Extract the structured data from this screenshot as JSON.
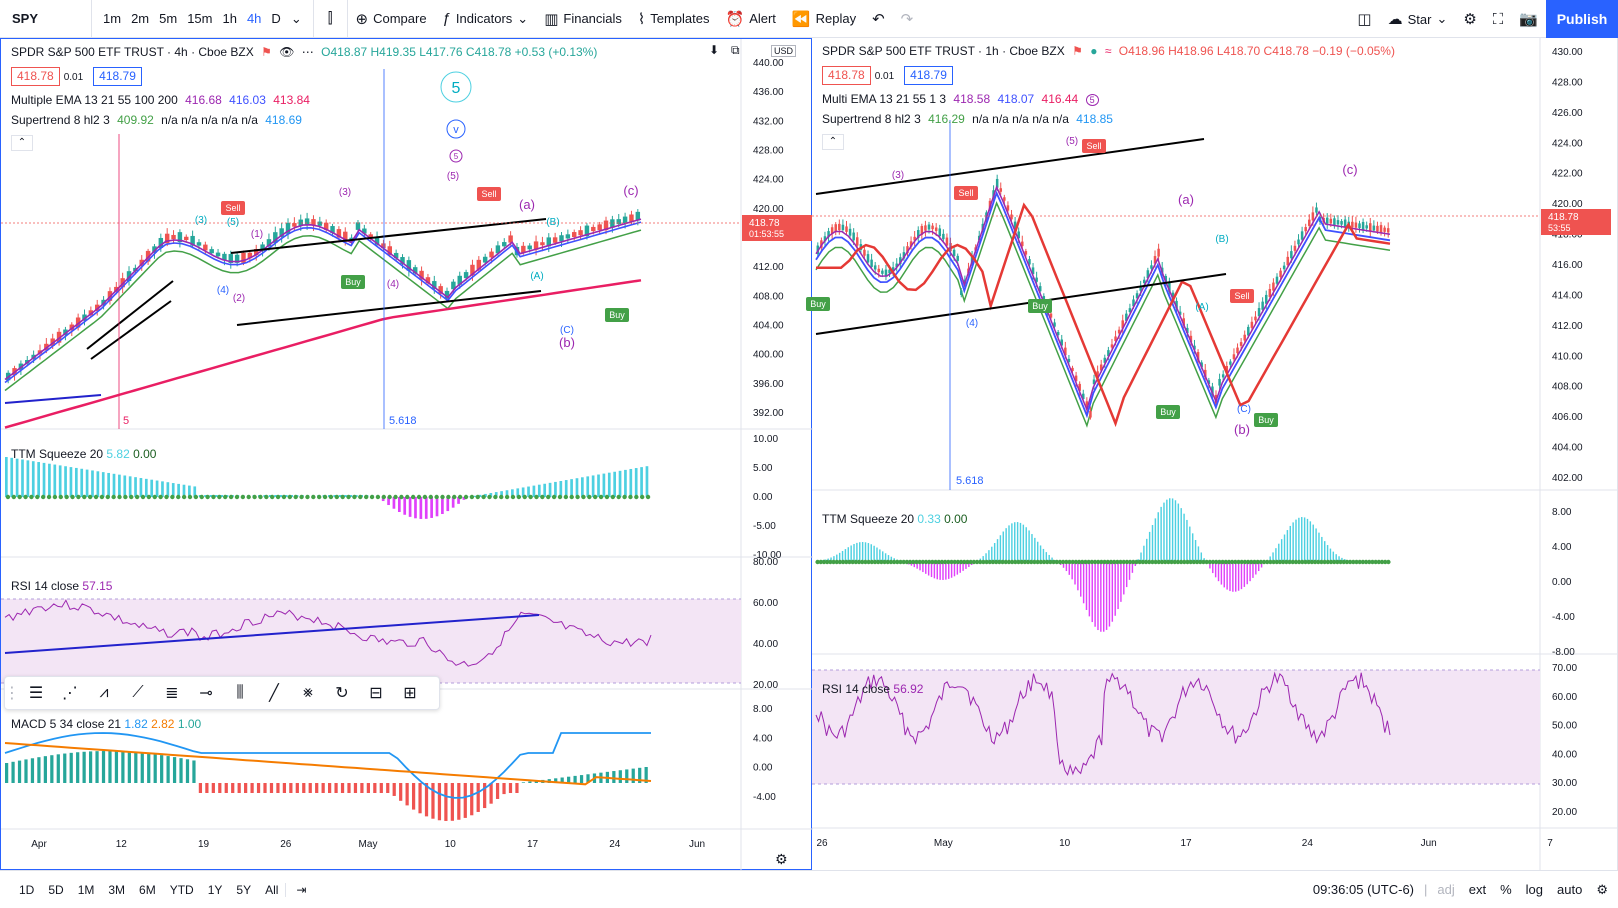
{
  "toolbar": {
    "symbol": "SPY",
    "intervals": [
      "1m",
      "2m",
      "5m",
      "15m",
      "1h",
      "4h",
      "D"
    ],
    "active_interval": "4h",
    "compare": "Compare",
    "indicators": "Indicators",
    "financials": "Financials",
    "templates": "Templates",
    "alert": "Alert",
    "replay": "Replay",
    "star": "Star",
    "publish": "Publish"
  },
  "left_chart": {
    "title": "SPDR S&P 500 ETF TRUST · 4h · Cboe BZX",
    "ohlc": "O418.87 H419.35 L417.76 C418.78 +0.53 (+0.13%)",
    "sell_price": "418.78",
    "spread": "0.01",
    "buy_price": "418.79",
    "ema_legend": "Multiple EMA 13 21 55 100 200",
    "ema_values": [
      "416.68",
      "416.03",
      "413.84"
    ],
    "supertrend_legend": "Supertrend 8 hl2 3",
    "supertrend_value": "409.92",
    "supertrend_na": "n/a n/a n/a n/a n/a",
    "supertrend_last": "418.69",
    "currency": "USD",
    "price_axis": [
      "440.00",
      "436.00",
      "432.00",
      "428.00",
      "424.00",
      "420.00",
      "416.00",
      "412.00",
      "408.00",
      "404.00",
      "400.00",
      "396.00",
      "392.00"
    ],
    "last_price": "418.78",
    "countdown": "01:53:55",
    "fib_label": "5.618",
    "vline_label": "5",
    "squeeze_title": "TTM Squeeze 20",
    "squeeze_values": [
      "5.82",
      "0.00"
    ],
    "squeeze_axis": [
      "10.00",
      "5.00",
      "0.00",
      "-5.00",
      "-10.00"
    ],
    "rsi_title": "RSI 14 close",
    "rsi_value": "57.15",
    "rsi_axis": [
      "80.00",
      "60.00",
      "40.00",
      "20.00"
    ],
    "macd_title": "MACD 5 34 close 21",
    "macd_values": [
      "1.82",
      "2.82",
      "1.00"
    ],
    "macd_axis": [
      "8.00",
      "4.00",
      "0.00",
      "-4.00"
    ],
    "time_axis": [
      "Apr",
      "12",
      "19",
      "26",
      "May",
      "10",
      "17",
      "24",
      "Jun"
    ],
    "wave_labels": [
      "(3)",
      "(5)",
      "(1)",
      "(4)",
      "(2)",
      "(3)",
      "(5)",
      "(4)",
      "(a)",
      "(B)",
      "(A)",
      "(C)",
      "(b)",
      "(c)",
      "5",
      "v",
      "5"
    ],
    "signals": [
      "Sell",
      "Sell",
      "Buy",
      "Buy"
    ]
  },
  "right_chart": {
    "title": "SPDR S&P 500 ETF TRUST · 1h · Cboe BZX",
    "ohlc": "O418.96 H418.96 L418.70 C418.78 −0.19 (−0.05%)",
    "sell_price": "418.78",
    "spread": "0.01",
    "buy_price": "418.79",
    "ema_legend": "Multi EMA 13 21 55 1 3",
    "ema_values": [
      "418.58",
      "418.07",
      "416.44"
    ],
    "ema_badge": "5",
    "supertrend_legend": "Supertrend 8 hl2 3",
    "supertrend_value": "416.29",
    "supertrend_na": "n/a n/a n/a n/a n/a",
    "supertrend_last": "418.85",
    "price_axis": [
      "430.00",
      "428.00",
      "426.00",
      "424.00",
      "422.00",
      "420.00",
      "418.00",
      "416.00",
      "414.00",
      "412.00",
      "410.00",
      "408.00",
      "406.00",
      "404.00",
      "402.00"
    ],
    "last_price": "418.78",
    "countdown": "53:55",
    "fib_label": "5.618",
    "squeeze_title": "TTM Squeeze 20",
    "squeeze_values": [
      "0.33",
      "0.00"
    ],
    "squeeze_axis": [
      "8.00",
      "4.00",
      "0.00",
      "-4.00",
      "-8.00"
    ],
    "rsi_title": "RSI 14 close",
    "rsi_value": "56.92",
    "rsi_axis": [
      "70.00",
      "60.00",
      "50.00",
      "40.00",
      "30.00",
      "20.00"
    ],
    "time_axis": [
      "26",
      "May",
      "10",
      "17",
      "24",
      "Jun",
      "7"
    ],
    "wave_labels": [
      "(3)",
      "(5)",
      "(4)",
      "(a)",
      "(B)",
      "(A)",
      "(C)",
      "(b)",
      "(c)"
    ],
    "signals": [
      "Sell",
      "Sell",
      "Buy",
      "Buy",
      "Buy",
      "Sell"
    ]
  },
  "bottom": {
    "ranges": [
      "1D",
      "5D",
      "1M",
      "3M",
      "6M",
      "YTD",
      "1Y",
      "5Y",
      "All"
    ],
    "time": "09:36:05 (UTC-6)",
    "adj": "adj",
    "ext": "ext",
    "percent": "%",
    "log": "log",
    "auto": "auto"
  },
  "colors": {
    "accent": "#2962ff",
    "up": "#26a69a",
    "down": "#ef5350",
    "ema_fast": "#9c27b0",
    "ema_mid": "#3f51ff",
    "ema_slow": "#e91e63",
    "supertrend": "#43a047",
    "rsi_band": "#f3e5f5",
    "squeeze_pos": "#4dd0e1",
    "squeeze_neg": "#e040fb"
  }
}
